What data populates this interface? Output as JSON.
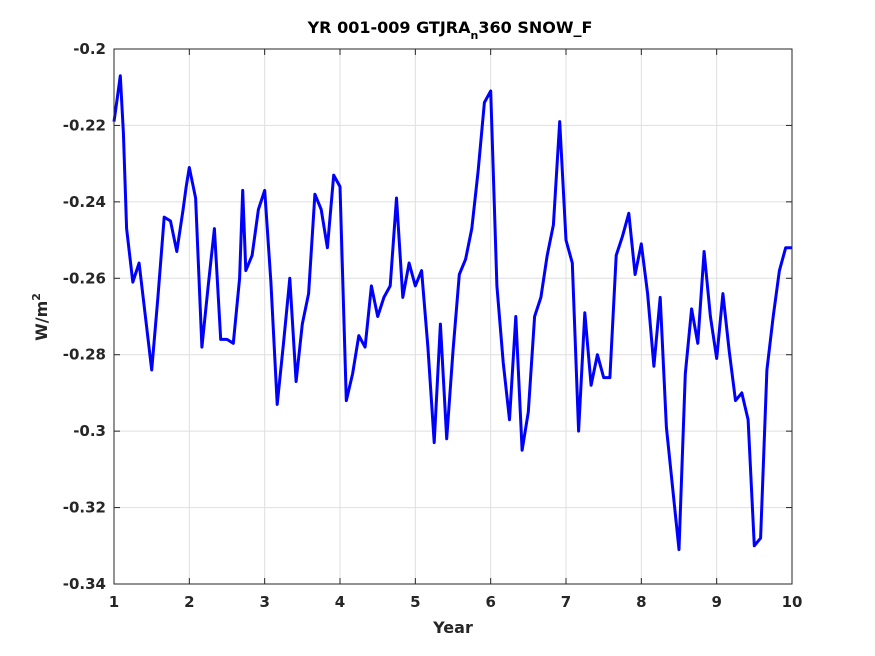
{
  "chart_data": {
    "type": "line",
    "title": {
      "prefix": "YR 001-009 GTJRA",
      "subscript": "n",
      "suffix": "360 SNOW_F"
    },
    "xlabel": "Year",
    "ylabel": {
      "base": "W/m",
      "superscript": "2"
    },
    "xlim": [
      1,
      10
    ],
    "ylim": [
      -0.34,
      -0.2
    ],
    "xticks": [
      1,
      2,
      3,
      4,
      5,
      6,
      7,
      8,
      9,
      10
    ],
    "xtick_labels": [
      "1",
      "2",
      "3",
      "4",
      "5",
      "6",
      "7",
      "8",
      "9",
      "10"
    ],
    "yticks": [
      -0.34,
      -0.32,
      -0.3,
      -0.28,
      -0.26,
      -0.24,
      -0.22,
      -0.2
    ],
    "ytick_labels": [
      "-0.34",
      "-0.32",
      "-0.3",
      "-0.28",
      "-0.26",
      "-0.24",
      "-0.22",
      "-0.2"
    ],
    "grid": true,
    "line_color": "#0000ff",
    "series": [
      {
        "x": [
          1.0,
          1.042,
          1.083,
          1.125,
          1.167,
          1.25,
          1.333,
          1.417,
          1.5,
          1.583,
          1.667,
          1.75,
          1.833,
          1.917,
          1.958,
          2.0,
          2.083,
          2.167,
          2.25,
          2.333,
          2.417,
          2.5,
          2.583,
          2.667,
          2.708,
          2.75,
          2.833,
          2.917,
          3.0,
          3.083,
          3.167,
          3.25,
          3.333,
          3.417,
          3.5,
          3.583,
          3.667,
          3.75,
          3.833,
          3.917,
          4.0,
          4.083,
          4.167,
          4.25,
          4.333,
          4.417,
          4.5,
          4.583,
          4.667,
          4.75,
          4.833,
          4.917,
          5.0,
          5.083,
          5.167,
          5.25,
          5.333,
          5.417,
          5.5,
          5.583,
          5.667,
          5.75,
          5.833,
          5.917,
          6.0,
          6.083,
          6.167,
          6.25,
          6.333,
          6.417,
          6.5,
          6.583,
          6.667,
          6.75,
          6.833,
          6.917,
          7.0,
          7.083,
          7.167,
          7.25,
          7.333,
          7.417,
          7.5,
          7.583,
          7.667,
          7.75,
          7.833,
          7.917,
          8.0,
          8.083,
          8.167,
          8.25,
          8.333,
          8.417,
          8.5,
          8.583,
          8.667,
          8.75,
          8.833,
          8.917,
          9.0,
          9.083,
          9.167,
          9.25,
          9.333,
          9.417,
          9.5,
          9.583,
          9.667,
          9.75,
          9.833,
          9.917,
          10.0
        ],
        "y": [
          -0.219,
          -0.213,
          -0.207,
          -0.222,
          -0.247,
          -0.261,
          -0.256,
          -0.27,
          -0.284,
          -0.265,
          -0.244,
          -0.245,
          -0.253,
          -0.242,
          -0.236,
          -0.231,
          -0.239,
          -0.278,
          -0.262,
          -0.247,
          -0.276,
          -0.276,
          -0.277,
          -0.26,
          -0.237,
          -0.258,
          -0.254,
          -0.242,
          -0.237,
          -0.261,
          -0.293,
          -0.277,
          -0.26,
          -0.287,
          -0.272,
          -0.264,
          -0.238,
          -0.242,
          -0.252,
          -0.233,
          -0.236,
          -0.292,
          -0.285,
          -0.275,
          -0.278,
          -0.262,
          -0.27,
          -0.265,
          -0.262,
          -0.239,
          -0.265,
          -0.256,
          -0.262,
          -0.258,
          -0.278,
          -0.303,
          -0.272,
          -0.302,
          -0.279,
          -0.259,
          -0.255,
          -0.247,
          -0.232,
          -0.214,
          -0.211,
          -0.262,
          -0.282,
          -0.297,
          -0.27,
          -0.305,
          -0.295,
          -0.27,
          -0.265,
          -0.254,
          -0.246,
          -0.219,
          -0.25,
          -0.256,
          -0.3,
          -0.269,
          -0.288,
          -0.28,
          -0.286,
          -0.286,
          -0.254,
          -0.249,
          -0.243,
          -0.259,
          -0.251,
          -0.264,
          -0.283,
          -0.265,
          -0.299,
          -0.315,
          -0.331,
          -0.285,
          -0.268,
          -0.277,
          -0.253,
          -0.27,
          -0.281,
          -0.264,
          -0.279,
          -0.292,
          -0.29,
          -0.297,
          -0.33,
          -0.328,
          -0.284,
          -0.27,
          -0.258,
          -0.252,
          -0.252
        ]
      }
    ]
  }
}
